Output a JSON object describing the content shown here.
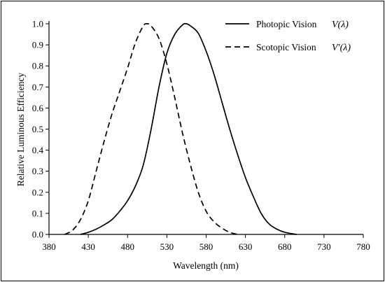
{
  "chart_data": {
    "type": "line",
    "title": "",
    "xlabel": "Wavelength (nm)",
    "ylabel": "Relative Luminous Efficiency",
    "xlim": [
      380,
      780
    ],
    "ylim": [
      0,
      1.0
    ],
    "xticks": [
      "380",
      "430",
      "480",
      "530",
      "580",
      "630",
      "680",
      "730",
      "780"
    ],
    "yticks": [
      "0.0",
      "0.1",
      "0.2",
      "0.3",
      "0.4",
      "0.5",
      "0.6",
      "0.7",
      "0.8",
      "0.9",
      "1.0"
    ],
    "grid": false,
    "legend_position": "top-right",
    "series": [
      {
        "name": "Photopic Vision",
        "symbol": "V(λ)",
        "style": "solid",
        "x": [
          420,
          430,
          440,
          450,
          460,
          470,
          480,
          490,
          500,
          510,
          520,
          530,
          540,
          550,
          555,
          560,
          570,
          580,
          590,
          600,
          610,
          620,
          630,
          640,
          650,
          660,
          670,
          680,
          690,
          695
        ],
        "values": [
          0.0,
          0.01,
          0.025,
          0.045,
          0.07,
          0.11,
          0.16,
          0.23,
          0.33,
          0.5,
          0.7,
          0.86,
          0.95,
          0.995,
          1.0,
          0.99,
          0.955,
          0.87,
          0.76,
          0.63,
          0.5,
          0.38,
          0.27,
          0.18,
          0.1,
          0.05,
          0.025,
          0.01,
          0.003,
          0.0
        ]
      },
      {
        "name": "Scotopic Vision",
        "symbol": "V′(λ)",
        "style": "dashed",
        "x": [
          400,
          410,
          420,
          430,
          440,
          450,
          460,
          470,
          480,
          490,
          500,
          505,
          510,
          520,
          530,
          540,
          550,
          560,
          570,
          580,
          590,
          600,
          610,
          620
        ],
        "values": [
          0.0,
          0.02,
          0.07,
          0.16,
          0.3,
          0.44,
          0.57,
          0.68,
          0.79,
          0.91,
          0.99,
          1.0,
          0.99,
          0.93,
          0.81,
          0.65,
          0.48,
          0.33,
          0.2,
          0.11,
          0.06,
          0.03,
          0.01,
          0.0
        ]
      }
    ]
  }
}
